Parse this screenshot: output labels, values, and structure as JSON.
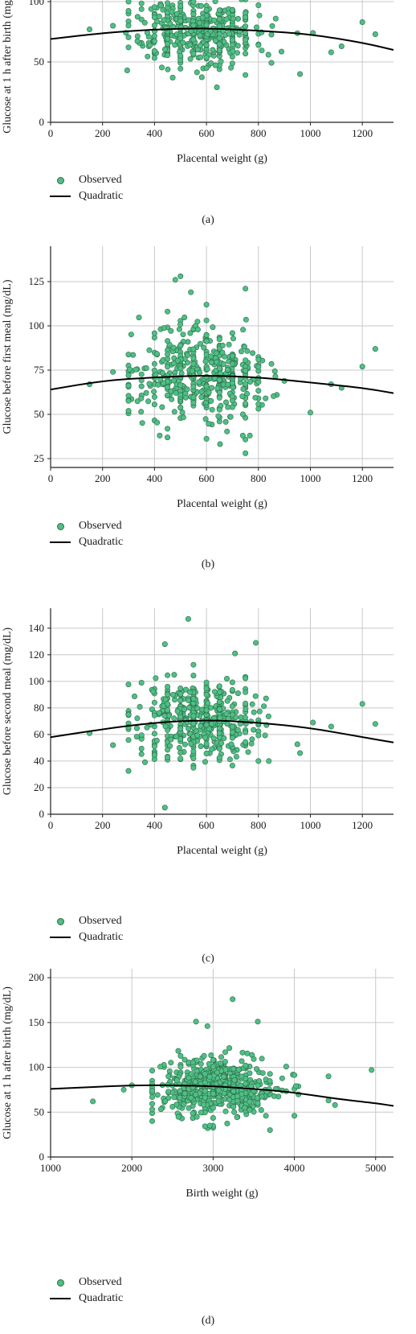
{
  "colors": {
    "point_fill": "#4fbf85",
    "point_stroke": "#2d6b49",
    "curve": "#000000",
    "grid": "#c8c8c8",
    "axis": "#222222"
  },
  "chart_data": [
    {
      "panel_label": "(a)",
      "type": "scatter",
      "xlabel": "Placental weight (g)",
      "ylabel": "Glucose at 1 h after birth (mg/dL)",
      "xlim": [
        0,
        1320
      ],
      "ylim": [
        0,
        108
      ],
      "xticks": [
        0,
        200,
        400,
        600,
        800,
        1000,
        1200
      ],
      "yticks": [
        0,
        50,
        100
      ],
      "grid": true,
      "legend": [
        {
          "label": "Observed",
          "type": "points"
        },
        {
          "label": "Quadratic",
          "type": "line"
        }
      ],
      "legend_position": "bottom-left",
      "quadratic_fit": [
        [
          0,
          69
        ],
        [
          200,
          74
        ],
        [
          400,
          77
        ],
        [
          600,
          78
        ],
        [
          800,
          76
        ],
        [
          1000,
          73
        ],
        [
          1200,
          66
        ],
        [
          1320,
          60
        ]
      ],
      "outliers": [
        [
          150,
          77
        ],
        [
          240,
          80
        ],
        [
          295,
          43
        ],
        [
          300,
          100
        ],
        [
          640,
          29
        ],
        [
          960,
          40
        ],
        [
          1010,
          74
        ],
        [
          1080,
          58
        ],
        [
          1120,
          63
        ],
        [
          1200,
          83
        ],
        [
          1250,
          73
        ],
        [
          470,
          37
        ]
      ],
      "cluster": {
        "x_min": 290,
        "x_max": 960,
        "x_center": 580,
        "x_sd": 120,
        "y_center": 76,
        "y_sd": 14,
        "count": 480,
        "seed": 11
      }
    },
    {
      "panel_label": "(b)",
      "type": "scatter",
      "xlabel": "Placental weight (g)",
      "ylabel": "Glucose before first meal (mg/dL)",
      "xlim": [
        0,
        1320
      ],
      "ylim": [
        20,
        145
      ],
      "xticks": [
        0,
        200,
        400,
        600,
        800,
        1000,
        1200
      ],
      "yticks": [
        25,
        50,
        75,
        100,
        125
      ],
      "grid": true,
      "legend": [
        {
          "label": "Observed",
          "type": "points"
        },
        {
          "label": "Quadratic",
          "type": "line"
        }
      ],
      "legend_position": "bottom-left",
      "quadratic_fit": [
        [
          0,
          64
        ],
        [
          200,
          69
        ],
        [
          400,
          71
        ],
        [
          600,
          72
        ],
        [
          800,
          71
        ],
        [
          1000,
          68
        ],
        [
          1200,
          65
        ],
        [
          1320,
          62
        ]
      ],
      "outliers": [
        [
          150,
          67
        ],
        [
          240,
          74
        ],
        [
          300,
          72
        ],
        [
          300,
          52
        ],
        [
          500,
          128
        ],
        [
          480,
          126
        ],
        [
          540,
          119
        ],
        [
          600,
          112
        ],
        [
          750,
          121
        ],
        [
          750,
          28
        ],
        [
          1000,
          51
        ],
        [
          1080,
          67
        ],
        [
          1120,
          65
        ],
        [
          1200,
          77
        ],
        [
          1250,
          87
        ],
        [
          420,
          38
        ],
        [
          450,
          37
        ]
      ],
      "cluster": {
        "x_min": 300,
        "x_max": 960,
        "x_center": 580,
        "x_sd": 120,
        "y_center": 71,
        "y_sd": 13,
        "count": 480,
        "seed": 23
      }
    },
    {
      "panel_label": "(c)",
      "type": "scatter",
      "xlabel": "Placental weight (g)",
      "ylabel": "Glucose before second meal (mg/dL)",
      "xlim": [
        0,
        1320
      ],
      "ylim": [
        0,
        155
      ],
      "xticks": [
        0,
        200,
        400,
        600,
        800,
        1000,
        1200
      ],
      "yticks": [
        0,
        20,
        40,
        60,
        80,
        100,
        120,
        140
      ],
      "grid": true,
      "legend": [
        {
          "label": "Observed",
          "type": "points"
        },
        {
          "label": "Quadratic",
          "type": "line"
        }
      ],
      "legend_position": "bottom-left",
      "quadratic_fit": [
        [
          0,
          58
        ],
        [
          200,
          64
        ],
        [
          400,
          69
        ],
        [
          600,
          71
        ],
        [
          800,
          69
        ],
        [
          1000,
          65
        ],
        [
          1200,
          58
        ],
        [
          1320,
          54
        ]
      ],
      "outliers": [
        [
          150,
          61
        ],
        [
          240,
          52
        ],
        [
          300,
          75
        ],
        [
          530,
          147
        ],
        [
          440,
          128
        ],
        [
          710,
          121
        ],
        [
          790,
          129
        ],
        [
          440,
          5
        ],
        [
          1010,
          69
        ],
        [
          1080,
          66
        ],
        [
          1200,
          83
        ],
        [
          1250,
          68
        ],
        [
          960,
          46
        ],
        [
          840,
          40
        ]
      ],
      "cluster": {
        "x_min": 300,
        "x_max": 960,
        "x_center": 580,
        "x_sd": 120,
        "y_center": 70,
        "y_sd": 14,
        "count": 480,
        "seed": 37
      }
    },
    {
      "panel_label": "(d)",
      "type": "scatter",
      "xlabel": "Birth weight (g)",
      "ylabel": "Glucose at 1 h after birth (mg/dL)",
      "xlim": [
        1000,
        5220
      ],
      "ylim": [
        0,
        210
      ],
      "xticks": [
        1000,
        2000,
        3000,
        4000,
        5000
      ],
      "yticks": [
        0,
        50,
        100,
        150,
        200
      ],
      "grid": true,
      "legend": [
        {
          "label": "Observed",
          "type": "points"
        },
        {
          "label": "Quadratic",
          "type": "line"
        }
      ],
      "legend_position": "bottom-left",
      "quadratic_fit": [
        [
          1000,
          76
        ],
        [
          1500,
          78
        ],
        [
          2000,
          80
        ],
        [
          2500,
          80
        ],
        [
          3000,
          79
        ],
        [
          3500,
          76
        ],
        [
          4000,
          72
        ],
        [
          4500,
          65
        ],
        [
          5000,
          60
        ],
        [
          5220,
          57
        ]
      ],
      "outliers": [
        [
          1520,
          62
        ],
        [
          1900,
          75
        ],
        [
          2000,
          80
        ],
        [
          2250,
          40
        ],
        [
          3240,
          176
        ],
        [
          3550,
          151
        ],
        [
          2790,
          151
        ],
        [
          2930,
          146
        ],
        [
          3700,
          30
        ],
        [
          2960,
          35
        ],
        [
          4000,
          46
        ],
        [
          4420,
          90
        ],
        [
          4420,
          63
        ],
        [
          4500,
          58
        ],
        [
          4950,
          97
        ],
        [
          2450,
          90
        ]
      ],
      "cluster": {
        "x_min": 2250,
        "x_max": 4050,
        "x_center": 3060,
        "x_sd": 380,
        "y_center": 77,
        "y_sd": 17,
        "count": 520,
        "seed": 53
      }
    }
  ]
}
